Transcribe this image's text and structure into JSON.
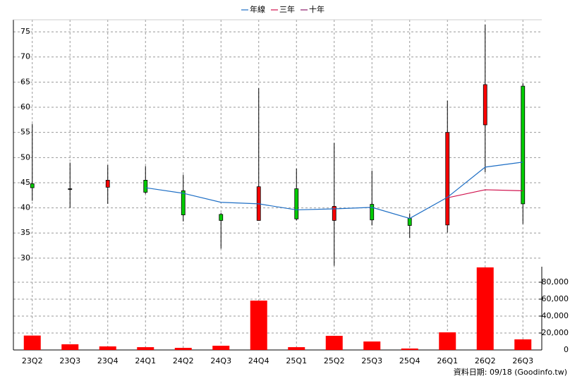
{
  "chart_data": {
    "type": "candlestick",
    "categories": [
      "23Q2",
      "23Q3",
      "23Q4",
      "24Q1",
      "24Q2",
      "24Q3",
      "24Q4",
      "25Q1",
      "25Q2",
      "25Q3",
      "25Q4",
      "26Q1",
      "26Q2",
      "26Q3"
    ],
    "open": [
      44.8,
      43.8,
      44.1,
      45.5,
      43.4,
      38.7,
      37.5,
      43.8,
      37.5,
      40.7,
      37.9,
      36.6,
      56.5,
      64.2
    ],
    "high": [
      56.7,
      49.0,
      48.5,
      48.3,
      46.6,
      39.0,
      63.8,
      47.8,
      52.9,
      47.4,
      38.9,
      61.3,
      76.4,
      64.8
    ],
    "low": [
      41.4,
      40.0,
      40.8,
      42.8,
      37.3,
      31.9,
      37.5,
      37.5,
      28.5,
      36.5,
      34.0,
      35.1,
      47.1,
      36.8
    ],
    "close": [
      44.0,
      43.8,
      45.5,
      43.1,
      38.6,
      37.5,
      44.2,
      37.8,
      40.3,
      37.6,
      36.5,
      55.0,
      64.5,
      40.8
    ],
    "up_color": "#ff0000",
    "down_color": "#00cc00",
    "series": [
      {
        "name": "年線",
        "color": "#1f6fc5",
        "values": [
          null,
          null,
          null,
          44.0,
          42.9,
          41.1,
          40.8,
          39.6,
          39.8,
          40.1,
          37.9,
          42.1,
          48.1,
          49.1
        ]
      },
      {
        "name": "三年",
        "color": "#d0104c",
        "values": [
          null,
          null,
          null,
          null,
          null,
          null,
          null,
          null,
          null,
          null,
          null,
          42.0,
          43.6,
          43.4
        ]
      },
      {
        "name": "十年",
        "color": "#8b1a6b",
        "values": [
          null,
          null,
          null,
          null,
          null,
          null,
          null,
          null,
          null,
          null,
          null,
          null,
          null,
          null
        ]
      }
    ],
    "ylim": [
      28.3,
      77.4
    ],
    "yticks": [
      30,
      35,
      40,
      45,
      50,
      55,
      60,
      65,
      70,
      75
    ],
    "volume": {
      "values": [
        17000,
        6700,
        4200,
        3300,
        2500,
        5000,
        58300,
        3300,
        16700,
        10000,
        1700,
        20800,
        97500,
        12500
      ],
      "color": "#ff0000",
      "ylim": [
        0,
        98333
      ],
      "yticks": [
        0,
        {
          "value": 20000,
          "label": "20,000"
        },
        {
          "value": 40000,
          "label": "40,000"
        },
        {
          "value": 60000,
          "label": "60,000"
        },
        {
          "value": 80000,
          "label": "80,000"
        }
      ]
    },
    "grid": true,
    "legend": "top",
    "note": "資料日期: 09/18 (Goodinfo.tw)"
  }
}
